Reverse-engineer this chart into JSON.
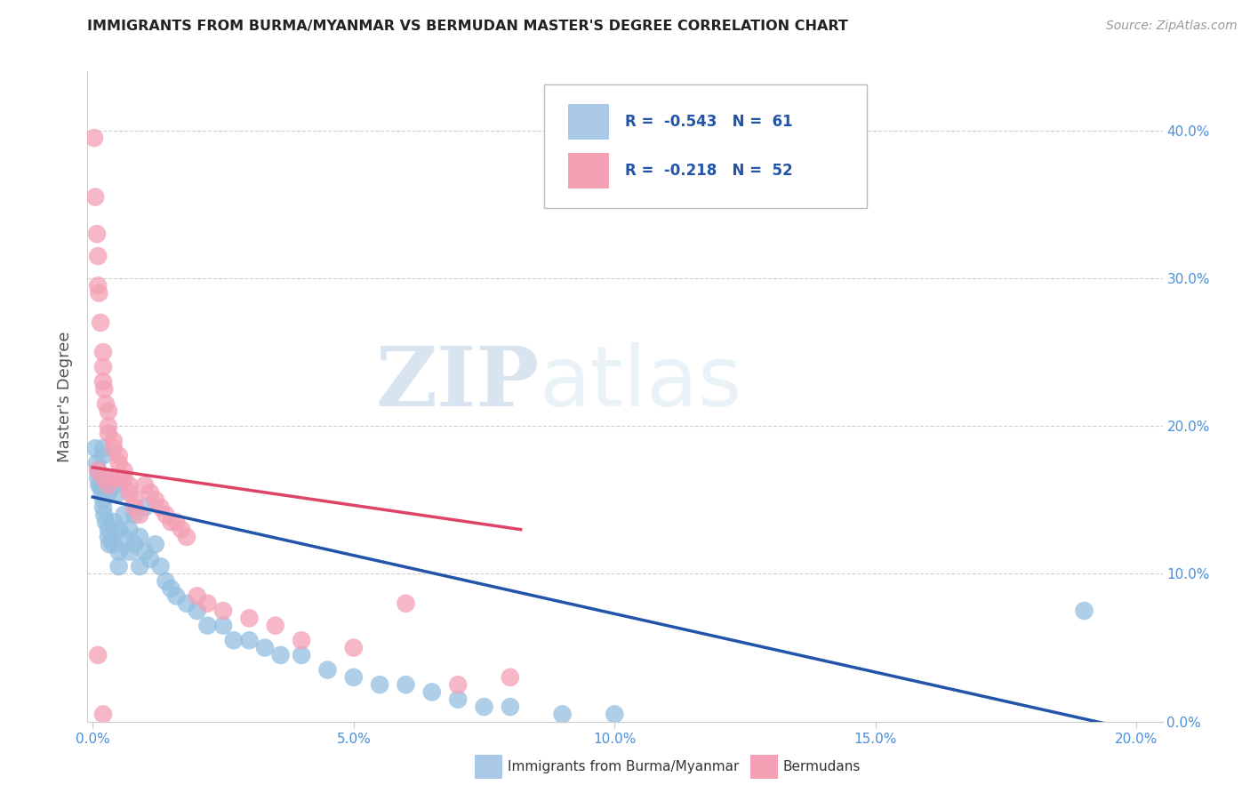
{
  "title": "IMMIGRANTS FROM BURMA/MYANMAR VS BERMUDAN MASTER'S DEGREE CORRELATION CHART",
  "source": "Source: ZipAtlas.com",
  "ylabel": "Master's Degree",
  "ylim": [
    0.0,
    0.44
  ],
  "xlim": [
    -0.001,
    0.205
  ],
  "blue_color": "#93bfe0",
  "pink_color": "#f4a0b5",
  "blue_line_color": "#2255aa",
  "pink_line_color": "#dd4466",
  "legend_blue_r": "-0.543",
  "legend_blue_n": "61",
  "legend_pink_r": "-0.218",
  "legend_pink_n": "52",
  "watermark_zip": "ZIP",
  "watermark_atlas": "atlas",
  "bottom_legend_blue": "Immigrants from Burma/Myanmar",
  "bottom_legend_pink": "Bermudans",
  "blue_scatter_x": [
    0.0005,
    0.0008,
    0.001,
    0.001,
    0.0012,
    0.0015,
    0.0018,
    0.002,
    0.002,
    0.002,
    0.0022,
    0.0025,
    0.003,
    0.003,
    0.003,
    0.003,
    0.0032,
    0.004,
    0.004,
    0.004,
    0.005,
    0.005,
    0.005,
    0.005,
    0.006,
    0.006,
    0.007,
    0.007,
    0.008,
    0.008,
    0.009,
    0.009,
    0.01,
    0.01,
    0.011,
    0.012,
    0.013,
    0.014,
    0.015,
    0.016,
    0.018,
    0.02,
    0.022,
    0.025,
    0.027,
    0.03,
    0.033,
    0.036,
    0.04,
    0.045,
    0.05,
    0.055,
    0.06,
    0.065,
    0.07,
    0.075,
    0.08,
    0.09,
    0.1,
    0.19,
    0.002
  ],
  "blue_scatter_y": [
    0.185,
    0.175,
    0.17,
    0.165,
    0.16,
    0.16,
    0.155,
    0.185,
    0.15,
    0.145,
    0.14,
    0.135,
    0.165,
    0.155,
    0.13,
    0.125,
    0.12,
    0.16,
    0.135,
    0.12,
    0.155,
    0.13,
    0.115,
    0.105,
    0.14,
    0.125,
    0.13,
    0.115,
    0.14,
    0.12,
    0.125,
    0.105,
    0.145,
    0.115,
    0.11,
    0.12,
    0.105,
    0.095,
    0.09,
    0.085,
    0.08,
    0.075,
    0.065,
    0.065,
    0.055,
    0.055,
    0.05,
    0.045,
    0.045,
    0.035,
    0.03,
    0.025,
    0.025,
    0.02,
    0.015,
    0.01,
    0.01,
    0.005,
    0.005,
    0.075,
    0.18
  ],
  "pink_scatter_x": [
    0.0003,
    0.0005,
    0.0008,
    0.001,
    0.001,
    0.0012,
    0.0015,
    0.002,
    0.002,
    0.002,
    0.0022,
    0.0025,
    0.003,
    0.003,
    0.003,
    0.004,
    0.004,
    0.005,
    0.005,
    0.006,
    0.006,
    0.007,
    0.007,
    0.008,
    0.008,
    0.009,
    0.01,
    0.011,
    0.012,
    0.013,
    0.014,
    0.015,
    0.016,
    0.017,
    0.018,
    0.02,
    0.022,
    0.025,
    0.03,
    0.035,
    0.04,
    0.05,
    0.06,
    0.07,
    0.08,
    0.001,
    0.002,
    0.003,
    0.004,
    0.005,
    0.001,
    0.002
  ],
  "pink_scatter_y": [
    0.395,
    0.355,
    0.33,
    0.315,
    0.295,
    0.29,
    0.27,
    0.25,
    0.24,
    0.23,
    0.225,
    0.215,
    0.21,
    0.2,
    0.195,
    0.19,
    0.185,
    0.18,
    0.175,
    0.17,
    0.165,
    0.16,
    0.155,
    0.15,
    0.145,
    0.14,
    0.16,
    0.155,
    0.15,
    0.145,
    0.14,
    0.135,
    0.135,
    0.13,
    0.125,
    0.085,
    0.08,
    0.075,
    0.07,
    0.065,
    0.055,
    0.05,
    0.08,
    0.025,
    0.03,
    0.17,
    0.165,
    0.16,
    0.165,
    0.165,
    0.045,
    0.005
  ],
  "blue_line_x": [
    0.0,
    0.205
  ],
  "blue_line_y": [
    0.152,
    -0.01
  ],
  "pink_line_x": [
    0.0,
    0.082
  ],
  "pink_line_y": [
    0.172,
    0.13
  ],
  "grid_color": "#d0d0d0",
  "yticks": [
    0.0,
    0.1,
    0.2,
    0.3,
    0.4
  ],
  "xticks": [
    0.0,
    0.05,
    0.1,
    0.15,
    0.2
  ],
  "xtick_labels": [
    "0.0%",
    "5.0%",
    "10.0%",
    "15.0%",
    "20.0%"
  ],
  "ytick_labels_right": [
    "0.0%",
    "10.0%",
    "20.0%",
    "30.0%",
    "40.0%"
  ],
  "background_color": "#ffffff",
  "tick_color": "#4a90d9",
  "axis_color": "#cccccc"
}
